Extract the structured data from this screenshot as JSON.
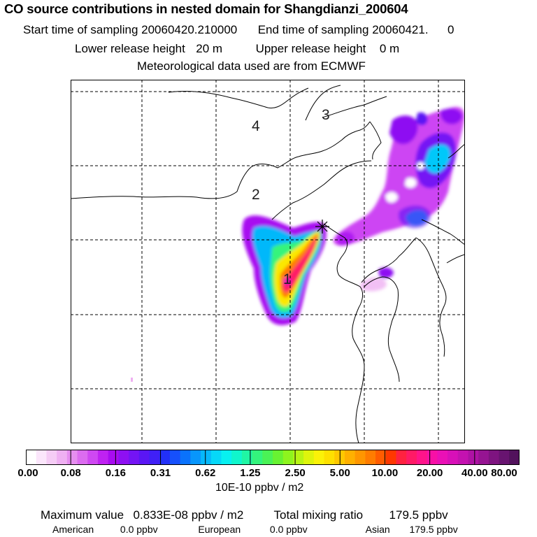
{
  "header": {
    "title": "CO  source contributions in nested domain for Shangdianzi_200604",
    "start_label": "Start time of sampling",
    "start_value": "20060420.210000",
    "end_label": "End time of sampling",
    "end_value": "20060421.",
    "end_value2": "0",
    "lower_label": "Lower release height",
    "lower_value": "20 m",
    "upper_label": "Upper release height",
    "upper_value": "0 m",
    "met_line": "Meteorological data used are from ECMWF"
  },
  "map": {
    "region_labels": [
      "1",
      "2",
      "3",
      "4"
    ],
    "receptor_marker": "+"
  },
  "colorbar": {
    "tick_labels": [
      "0.00",
      "0.08",
      "0.16",
      "0.31",
      "0.62",
      "1.25",
      "2.50",
      "5.00",
      "10.00",
      "20.00",
      "40.00",
      "80.00"
    ],
    "units": "10E-10 ppbv / m2",
    "colors": [
      "#ffffff",
      "#fbe6fb",
      "#f5ccf5",
      "#efb0f2",
      "#e68ef0",
      "#dc6cf0",
      "#cf48f2",
      "#bf22f2",
      "#a80cf0",
      "#8e10f2",
      "#7414f4",
      "#5a16f4",
      "#4020f6",
      "#2230f8",
      "#1650fc",
      "#0a72fc",
      "#0896fc",
      "#06b8fa",
      "#06d8f8",
      "#08f0f0",
      "#10f6cc",
      "#20f6a4",
      "#34f47c",
      "#4af256",
      "#68f232",
      "#8ef41e",
      "#b8f414",
      "#def40c",
      "#fbf208",
      "#fee000",
      "#ffc800",
      "#ffb000",
      "#ff9600",
      "#ff7c00",
      "#ff5c00",
      "#ff3800",
      "#ff2240",
      "#ff1a66",
      "#ff148a",
      "#f810a6",
      "#ea10b6",
      "#d810b8",
      "#c412b0",
      "#ae12a4",
      "#961492",
      "#7e1480",
      "#681470",
      "#52125c"
    ]
  },
  "stats": {
    "max_label": "Maximum value",
    "max_value": "0.833E-08 ppbv / m2",
    "total_label": "Total mixing ratio",
    "total_value": "179.5 ppbv",
    "american_label": "American",
    "american_value": "0.0 ppbv",
    "european_label": "European",
    "european_value": "0.0 ppbv",
    "asian_label": "Asian",
    "asian_value": "179.5 ppbv"
  }
}
